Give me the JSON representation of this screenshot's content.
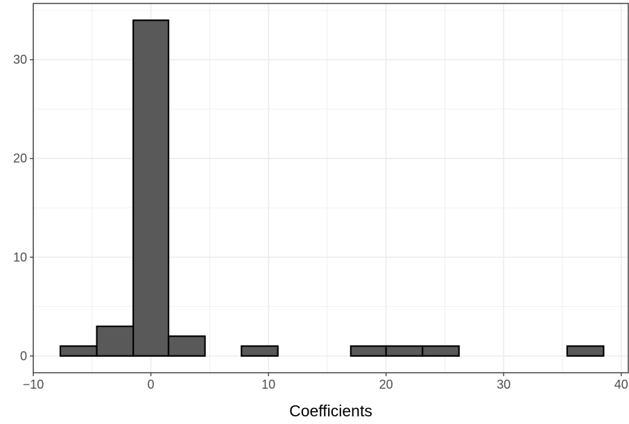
{
  "chart_data": {
    "type": "histogram",
    "xlabel": "Coefficients",
    "ylabel": "",
    "xlim": [
      -10,
      40.6
    ],
    "ylim": [
      -1.7,
      35.7
    ],
    "x_ticks": [
      -10,
      0,
      10,
      20,
      30,
      40
    ],
    "x_tick_labels": [
      "−10",
      "0",
      "10",
      "20",
      "30",
      "40"
    ],
    "y_ticks": [
      0,
      10,
      20,
      30
    ],
    "y_tick_labels": [
      "0",
      "10",
      "20",
      "30"
    ],
    "bins": [
      {
        "x0": -7.7,
        "x1": -4.6,
        "count": 1
      },
      {
        "x0": -4.6,
        "x1": -1.5,
        "count": 3
      },
      {
        "x0": -1.5,
        "x1": 1.5,
        "count": 34
      },
      {
        "x0": 1.5,
        "x1": 4.6,
        "count": 2
      },
      {
        "x0": 4.6,
        "x1": 7.7,
        "count": 0
      },
      {
        "x0": 7.7,
        "x1": 10.8,
        "count": 1
      },
      {
        "x0": 10.8,
        "x1": 13.9,
        "count": 0
      },
      {
        "x0": 13.9,
        "x1": 17.0,
        "count": 0
      },
      {
        "x0": 17.0,
        "x1": 20.0,
        "count": 1
      },
      {
        "x0": 20.0,
        "x1": 23.1,
        "count": 1
      },
      {
        "x0": 23.1,
        "x1": 26.2,
        "count": 1
      },
      {
        "x0": 26.2,
        "x1": 29.3,
        "count": 0
      },
      {
        "x0": 29.3,
        "x1": 32.4,
        "count": 0
      },
      {
        "x0": 32.4,
        "x1": 35.4,
        "count": 0
      },
      {
        "x0": 35.4,
        "x1": 38.5,
        "count": 1
      }
    ],
    "grid": true,
    "theme": "bw",
    "colors": {
      "bar_fill": "#595959",
      "bar_stroke": "#000000",
      "grid": "#ebebeb",
      "panel_border": "#333333"
    }
  }
}
